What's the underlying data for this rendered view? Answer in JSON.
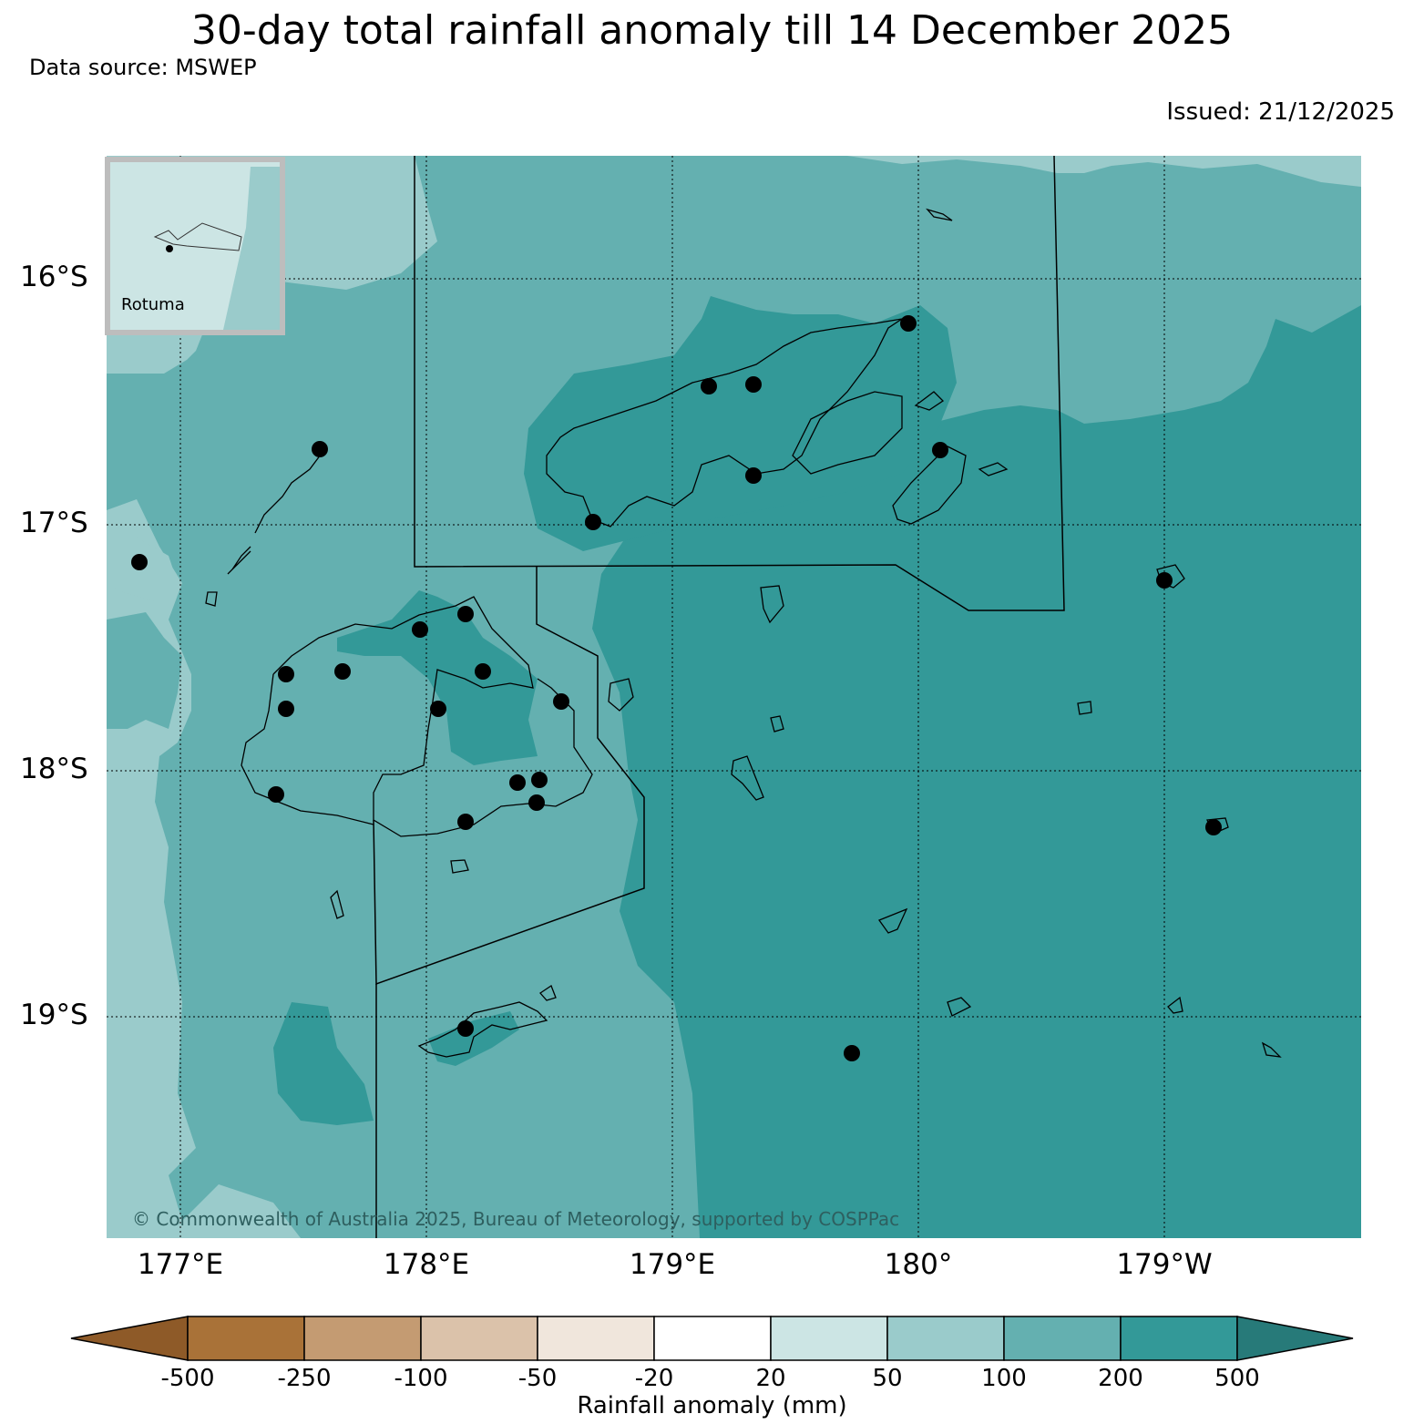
{
  "title": "30-day total rainfall anomaly till 14 December 2025",
  "data_source": "Data source: MSWEP",
  "issued": "Issued: 21/12/2025",
  "copyright": "© Commonwealth of Australia 2025, Bureau of Meteorology, supported by COSPPac",
  "inset_label": "Rotuma",
  "latitude_labels": [
    "16°S",
    "17°S",
    "18°S",
    "19°S"
  ],
  "longitude_labels": [
    "177°E",
    "178°E",
    "179°E",
    "180°",
    "179°W"
  ],
  "colorbar": {
    "label": "Rainfall anomaly (mm)",
    "ticks": [
      "-500",
      "-250",
      "-100",
      "-50",
      "-20",
      "20",
      "50",
      "100",
      "200",
      "500"
    ],
    "colors": [
      "#8e5a28",
      "#a97238",
      "#c49b72",
      "#dbc2aa",
      "#f0e6dc",
      "#ffffff",
      "#cce5e4",
      "#9acbcb",
      "#64b0b0",
      "#339998",
      "#277a79"
    ]
  },
  "colors": {
    "band_20_50": "#cce5e4",
    "band_50_100": "#9acbcb",
    "band_100_200": "#64b0b0",
    "band_200_500": "#339998"
  }
}
